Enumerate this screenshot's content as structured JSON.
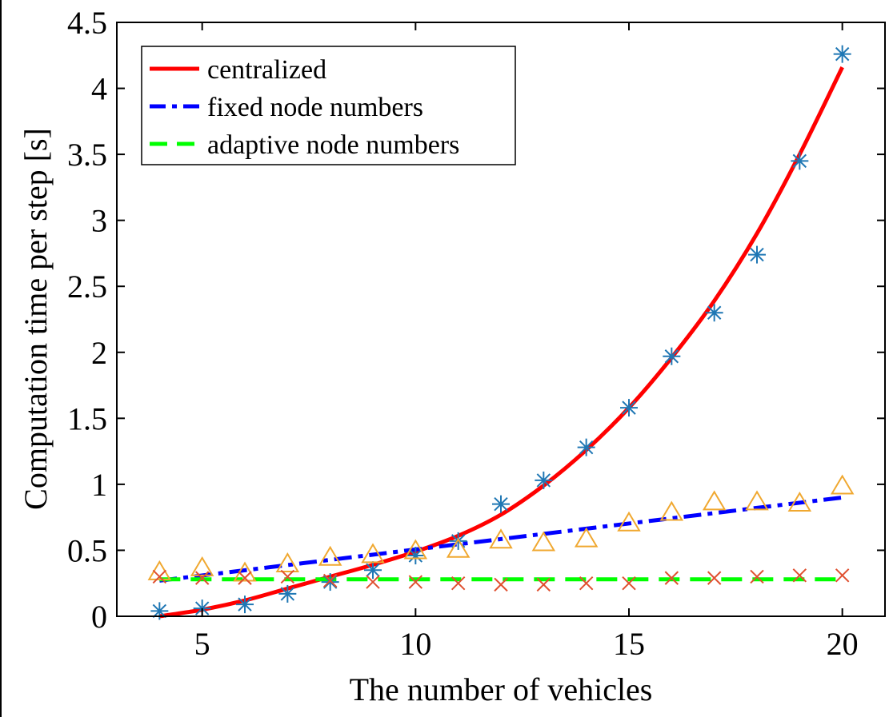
{
  "chart_data": {
    "type": "line",
    "title": "",
    "xlabel": "The number of vehicles",
    "ylabel": "Computation time per step [s]",
    "xlim": [
      3,
      21
    ],
    "ylim": [
      0,
      4.5
    ],
    "xticks": [
      5,
      10,
      15,
      20
    ],
    "yticks": [
      0,
      0.5,
      1,
      1.5,
      2,
      2.5,
      3,
      3.5,
      4,
      4.5
    ],
    "xtick_labels": [
      "5",
      "10",
      "15",
      "20"
    ],
    "ytick_labels": [
      "0",
      "0.5",
      "1",
      "1.5",
      "2",
      "2.5",
      "3",
      "3.5",
      "4",
      "4.5"
    ],
    "grid": false,
    "legend_position": "top-left",
    "series": [
      {
        "name": "centralized",
        "style": "solid",
        "color": "#ff0000",
        "x": [
          4,
          5,
          6,
          7,
          8,
          9,
          10,
          11,
          12,
          13,
          14,
          15,
          16,
          17,
          18,
          19,
          20
        ],
        "y": [
          0.0,
          0.05,
          0.12,
          0.21,
          0.3,
          0.39,
          0.49,
          0.61,
          0.77,
          0.99,
          1.26,
          1.58,
          1.96,
          2.39,
          2.9,
          3.5,
          4.16
        ]
      },
      {
        "name": "fixed node numbers",
        "style": "dashdot",
        "color": "#0000ff",
        "x": [
          4,
          20
        ],
        "y": [
          0.27,
          0.9
        ]
      },
      {
        "name": "adaptive node numbers",
        "style": "dashed",
        "color": "#00ff00",
        "x": [
          4,
          20
        ],
        "y": [
          0.28,
          0.28
        ]
      }
    ],
    "markers": [
      {
        "marker": "asterisk",
        "color": "#1f77b4",
        "x": [
          4,
          5,
          6,
          7,
          8,
          9,
          10,
          11,
          12,
          13,
          14,
          15,
          16,
          17,
          18,
          19,
          20
        ],
        "y": [
          0.04,
          0.06,
          0.09,
          0.17,
          0.26,
          0.35,
          0.46,
          0.57,
          0.85,
          1.03,
          1.28,
          1.58,
          1.97,
          2.3,
          2.74,
          3.45,
          4.26
        ]
      },
      {
        "marker": "triangle",
        "color": "#f0a830",
        "x": [
          4,
          5,
          6,
          7,
          8,
          9,
          10,
          11,
          12,
          13,
          14,
          15,
          16,
          17,
          18,
          19,
          20
        ],
        "y": [
          0.34,
          0.37,
          0.33,
          0.4,
          0.45,
          0.47,
          0.5,
          0.51,
          0.58,
          0.56,
          0.59,
          0.71,
          0.79,
          0.87,
          0.87,
          0.86,
          0.99
        ]
      },
      {
        "marker": "x",
        "color": "#e05030",
        "x": [
          4,
          5,
          6,
          7,
          8,
          9,
          10,
          11,
          12,
          13,
          14,
          15,
          16,
          17,
          18,
          19,
          20
        ],
        "y": [
          0.3,
          0.29,
          0.29,
          0.3,
          0.27,
          0.26,
          0.26,
          0.25,
          0.24,
          0.24,
          0.25,
          0.25,
          0.29,
          0.29,
          0.3,
          0.31,
          0.31
        ]
      }
    ]
  }
}
